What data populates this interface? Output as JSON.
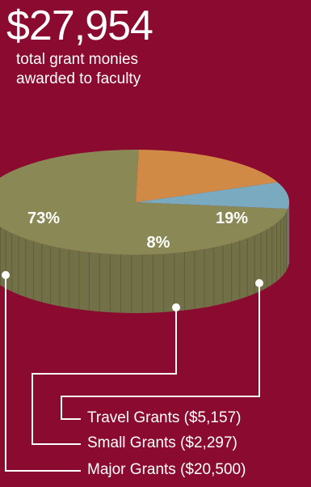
{
  "header": {
    "amount": "$27,954",
    "caption_line1": "total grant monies",
    "caption_line2": "awarded to faculty"
  },
  "colors": {
    "background": "#8a0a30",
    "major": "#8a8855",
    "small": "#7aaac0",
    "travel": "#d18a45",
    "connector": "#ffffff"
  },
  "chart_data": {
    "type": "pie",
    "title": "",
    "slices": [
      {
        "label": "Major Grants ($20,500)",
        "value": 20500,
        "percent_label": "73%",
        "color": "#8a8855"
      },
      {
        "label": "Small Grants ($2,297)",
        "value": 2297,
        "percent_label": "8%",
        "color": "#7aaac0"
      },
      {
        "label": "Travel Grants ($5,157)",
        "value": 5157,
        "percent_label": "19%",
        "color": "#d18a45"
      }
    ],
    "style": "3d-extruded"
  }
}
